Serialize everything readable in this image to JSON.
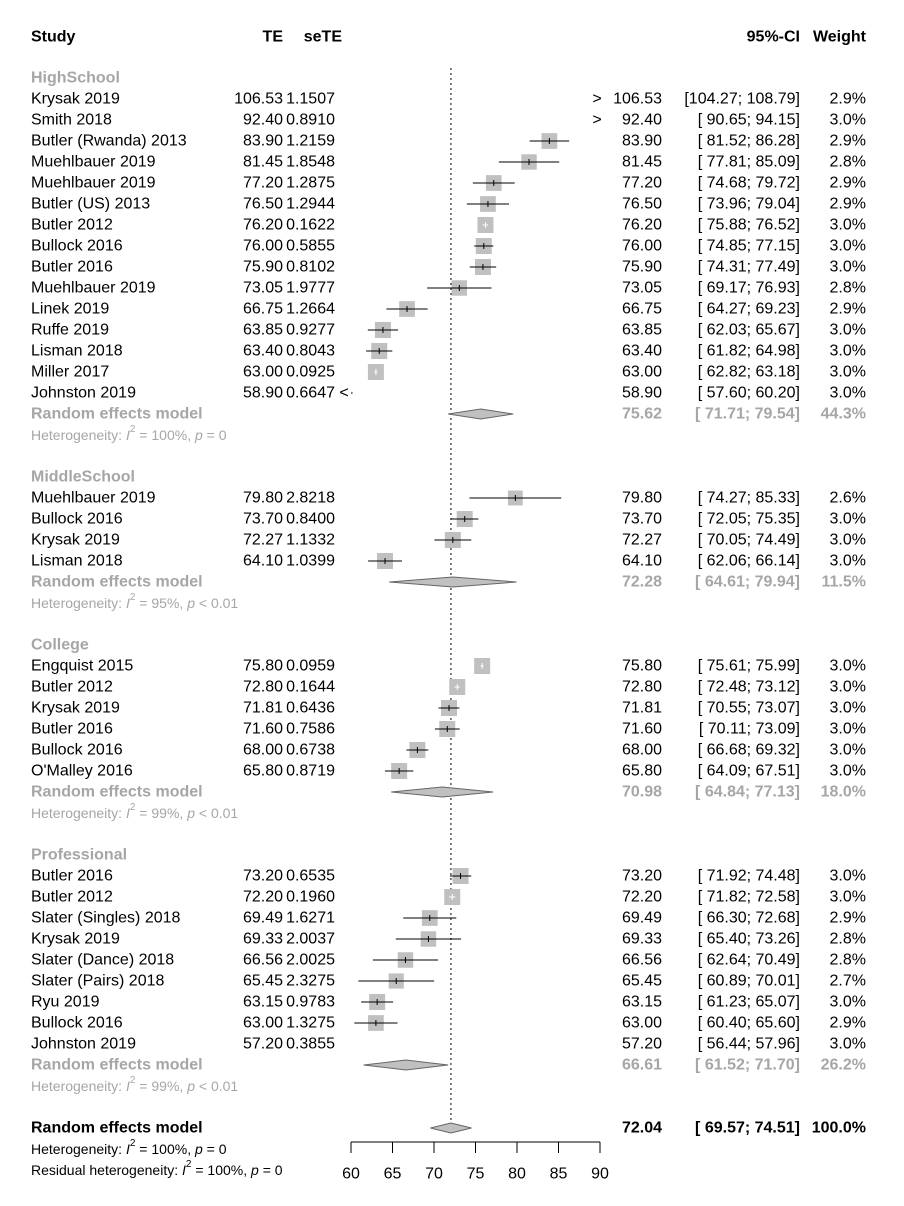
{
  "chart_data": {
    "type": "forest",
    "columns": {
      "study": "Study",
      "te": "TE",
      "sete": "seTE",
      "ci": "95%-CI",
      "weight": "Weight"
    },
    "xaxis": {
      "ticks": [
        60,
        65,
        70,
        75,
        80,
        85,
        90
      ],
      "range": [
        60,
        90
      ]
    },
    "reference_line": 72.04,
    "colors": {
      "square": "#c0c0c0",
      "diamond": "#c0c0c0",
      "subgroup_text": "#a6a6a6"
    },
    "subgroups": [
      {
        "name": "HighSchool",
        "studies": [
          {
            "study": "Krysak 2019",
            "te": "106.53",
            "sete": "1.1507",
            "est": 106.53,
            "lo": 104.27,
            "hi": 108.79,
            "ci": "[104.27; 108.79]",
            "weight": "2.9%"
          },
          {
            "study": "Smith 2018",
            "te": "92.40",
            "sete": "0.8910",
            "est": 92.4,
            "lo": 90.65,
            "hi": 94.15,
            "ci": "[ 90.65; 94.15]",
            "weight": "3.0%"
          },
          {
            "study": "Butler (Rwanda) 2013",
            "te": "83.90",
            "sete": "1.2159",
            "est": 83.9,
            "lo": 81.52,
            "hi": 86.28,
            "ci": "[ 81.52; 86.28]",
            "weight": "2.9%"
          },
          {
            "study": "Muehlbauer 2019",
            "te": "81.45",
            "sete": "1.8548",
            "est": 81.45,
            "lo": 77.81,
            "hi": 85.09,
            "ci": "[ 77.81; 85.09]",
            "weight": "2.8%"
          },
          {
            "study": "Muehlbauer 2019",
            "te": "77.20",
            "sete": "1.2875",
            "est": 77.2,
            "lo": 74.68,
            "hi": 79.72,
            "ci": "[ 74.68; 79.72]",
            "weight": "2.9%"
          },
          {
            "study": "Butler (US) 2013",
            "te": "76.50",
            "sete": "1.2944",
            "est": 76.5,
            "lo": 73.96,
            "hi": 79.04,
            "ci": "[ 73.96; 79.04]",
            "weight": "2.9%"
          },
          {
            "study": "Butler 2012",
            "te": "76.20",
            "sete": "0.1622",
            "est": 76.2,
            "lo": 75.88,
            "hi": 76.52,
            "ci": "[ 75.88; 76.52]",
            "weight": "3.0%"
          },
          {
            "study": "Bullock 2016",
            "te": "76.00",
            "sete": "0.5855",
            "est": 76.0,
            "lo": 74.85,
            "hi": 77.15,
            "ci": "[ 74.85; 77.15]",
            "weight": "3.0%"
          },
          {
            "study": "Butler 2016",
            "te": "75.90",
            "sete": "0.8102",
            "est": 75.9,
            "lo": 74.31,
            "hi": 77.49,
            "ci": "[ 74.31; 77.49]",
            "weight": "3.0%"
          },
          {
            "study": "Muehlbauer 2019",
            "te": "73.05",
            "sete": "1.9777",
            "est": 73.05,
            "lo": 69.17,
            "hi": 76.93,
            "ci": "[ 69.17; 76.93]",
            "weight": "2.8%"
          },
          {
            "study": "Linek 2019",
            "te": "66.75",
            "sete": "1.2664",
            "est": 66.75,
            "lo": 64.27,
            "hi": 69.23,
            "ci": "[ 64.27; 69.23]",
            "weight": "2.9%"
          },
          {
            "study": "Ruffe 2019",
            "te": "63.85",
            "sete": "0.9277",
            "est": 63.85,
            "lo": 62.03,
            "hi": 65.67,
            "ci": "[ 62.03; 65.67]",
            "weight": "3.0%"
          },
          {
            "study": "Lisman 2018",
            "te": "63.40",
            "sete": "0.8043",
            "est": 63.4,
            "lo": 61.82,
            "hi": 64.98,
            "ci": "[ 61.82; 64.98]",
            "weight": "3.0%"
          },
          {
            "study": "Miller 2017",
            "te": "63.00",
            "sete": "0.0925",
            "est": 63.0,
            "lo": 62.82,
            "hi": 63.18,
            "ci": "[ 62.82; 63.18]",
            "weight": "3.0%"
          },
          {
            "study": "Johnston 2019",
            "te": "58.90",
            "sete": "0.6647",
            "est": 58.9,
            "lo": 57.6,
            "hi": 60.2,
            "ci": "[ 57.60; 60.20]",
            "weight": "3.0%"
          }
        ],
        "re": {
          "label": "Random effects model",
          "est_text": "75.62",
          "est": 75.62,
          "lo": 71.71,
          "hi": 79.54,
          "ci": "[ 71.71; 79.54]",
          "weight": "44.3%"
        },
        "het": {
          "label": "Heterogeneity:",
          "i2": "100%",
          "p": "= 0"
        }
      },
      {
        "name": "MiddleSchool",
        "studies": [
          {
            "study": "Muehlbauer 2019",
            "te": "79.80",
            "sete": "2.8218",
            "est": 79.8,
            "lo": 74.27,
            "hi": 85.33,
            "ci": "[ 74.27; 85.33]",
            "weight": "2.6%"
          },
          {
            "study": "Bullock 2016",
            "te": "73.70",
            "sete": "0.8400",
            "est": 73.7,
            "lo": 72.05,
            "hi": 75.35,
            "ci": "[ 72.05; 75.35]",
            "weight": "3.0%"
          },
          {
            "study": "Krysak 2019",
            "te": "72.27",
            "sete": "1.1332",
            "est": 72.27,
            "lo": 70.05,
            "hi": 74.49,
            "ci": "[ 70.05; 74.49]",
            "weight": "3.0%"
          },
          {
            "study": "Lisman 2018",
            "te": "64.10",
            "sete": "1.0399",
            "est": 64.1,
            "lo": 62.06,
            "hi": 66.14,
            "ci": "[ 62.06; 66.14]",
            "weight": "3.0%"
          }
        ],
        "re": {
          "label": "Random effects model",
          "est_text": "72.28",
          "est": 72.28,
          "lo": 64.61,
          "hi": 79.94,
          "ci": "[ 64.61; 79.94]",
          "weight": "11.5%"
        },
        "het": {
          "label": "Heterogeneity:",
          "i2": "95%",
          "p": "< 0.01"
        }
      },
      {
        "name": "College",
        "studies": [
          {
            "study": "Engquist 2015",
            "te": "75.80",
            "sete": "0.0959",
            "est": 75.8,
            "lo": 75.61,
            "hi": 75.99,
            "ci": "[ 75.61; 75.99]",
            "weight": "3.0%"
          },
          {
            "study": "Butler 2012",
            "te": "72.80",
            "sete": "0.1644",
            "est": 72.8,
            "lo": 72.48,
            "hi": 73.12,
            "ci": "[ 72.48; 73.12]",
            "weight": "3.0%"
          },
          {
            "study": "Krysak 2019",
            "te": "71.81",
            "sete": "0.6436",
            "est": 71.81,
            "lo": 70.55,
            "hi": 73.07,
            "ci": "[ 70.55; 73.07]",
            "weight": "3.0%"
          },
          {
            "study": "Butler 2016",
            "te": "71.60",
            "sete": "0.7586",
            "est": 71.6,
            "lo": 70.11,
            "hi": 73.09,
            "ci": "[ 70.11; 73.09]",
            "weight": "3.0%"
          },
          {
            "study": "Bullock 2016",
            "te": "68.00",
            "sete": "0.6738",
            "est": 68.0,
            "lo": 66.68,
            "hi": 69.32,
            "ci": "[ 66.68; 69.32]",
            "weight": "3.0%"
          },
          {
            "study": "O'Malley 2016",
            "te": "65.80",
            "sete": "0.8719",
            "est": 65.8,
            "lo": 64.09,
            "hi": 67.51,
            "ci": "[ 64.09; 67.51]",
            "weight": "3.0%"
          }
        ],
        "re": {
          "label": "Random effects model",
          "est_text": "70.98",
          "est": 70.98,
          "lo": 64.84,
          "hi": 77.13,
          "ci": "[ 64.84; 77.13]",
          "weight": "18.0%"
        },
        "het": {
          "label": "Heterogeneity:",
          "i2": "99%",
          "p": "< 0.01"
        }
      },
      {
        "name": "Professional",
        "studies": [
          {
            "study": "Butler 2016",
            "te": "73.20",
            "sete": "0.6535",
            "est": 73.2,
            "lo": 71.92,
            "hi": 74.48,
            "ci": "[ 71.92; 74.48]",
            "weight": "3.0%"
          },
          {
            "study": "Butler 2012",
            "te": "72.20",
            "sete": "0.1960",
            "est": 72.2,
            "lo": 71.82,
            "hi": 72.58,
            "ci": "[ 71.82; 72.58]",
            "weight": "3.0%"
          },
          {
            "study": "Slater (Singles) 2018",
            "te": "69.49",
            "sete": "1.6271",
            "est": 69.49,
            "lo": 66.3,
            "hi": 72.68,
            "ci": "[ 66.30; 72.68]",
            "weight": "2.9%"
          },
          {
            "study": "Krysak 2019",
            "te": "69.33",
            "sete": "2.0037",
            "est": 69.33,
            "lo": 65.4,
            "hi": 73.26,
            "ci": "[ 65.40; 73.26]",
            "weight": "2.8%"
          },
          {
            "study": "Slater (Dance) 2018",
            "te": "66.56",
            "sete": "2.0025",
            "est": 66.56,
            "lo": 62.64,
            "hi": 70.49,
            "ci": "[ 62.64; 70.49]",
            "weight": "2.8%"
          },
          {
            "study": "Slater (Pairs) 2018",
            "te": "65.45",
            "sete": "2.3275",
            "est": 65.45,
            "lo": 60.89,
            "hi": 70.01,
            "ci": "[ 60.89; 70.01]",
            "weight": "2.7%"
          },
          {
            "study": "Ryu 2019",
            "te": "63.15",
            "sete": "0.9783",
            "est": 63.15,
            "lo": 61.23,
            "hi": 65.07,
            "ci": "[ 61.23; 65.07]",
            "weight": "3.0%"
          },
          {
            "study": "Bullock 2016",
            "te": "63.00",
            "sete": "1.3275",
            "est": 63.0,
            "lo": 60.4,
            "hi": 65.6,
            "ci": "[ 60.40; 65.60]",
            "weight": "2.9%"
          },
          {
            "study": "Johnston 2019",
            "te": "57.20",
            "sete": "0.3855",
            "est": 57.2,
            "lo": 56.44,
            "hi": 57.96,
            "ci": "[ 56.44; 57.96]",
            "weight": "3.0%"
          }
        ],
        "re": {
          "label": "Random effects model",
          "est_text": "66.61",
          "est": 66.61,
          "lo": 61.52,
          "hi": 71.7,
          "ci": "[ 61.52; 71.70]",
          "weight": "26.2%"
        },
        "het": {
          "label": "Heterogeneity:",
          "i2": "99%",
          "p": "< 0.01"
        }
      }
    ],
    "overall": {
      "label": "Random effects model",
      "est_text": "72.04",
      "est": 72.04,
      "lo": 69.57,
      "hi": 74.51,
      "ci": "[ 69.57; 74.51]",
      "weight": "100.0%",
      "het": {
        "label": "Heterogeneity:",
        "i2": "100%",
        "p": "= 0"
      },
      "residual_het": {
        "label": "Residual heterogeneity:",
        "i2": "100%",
        "p": "= 0"
      }
    }
  }
}
